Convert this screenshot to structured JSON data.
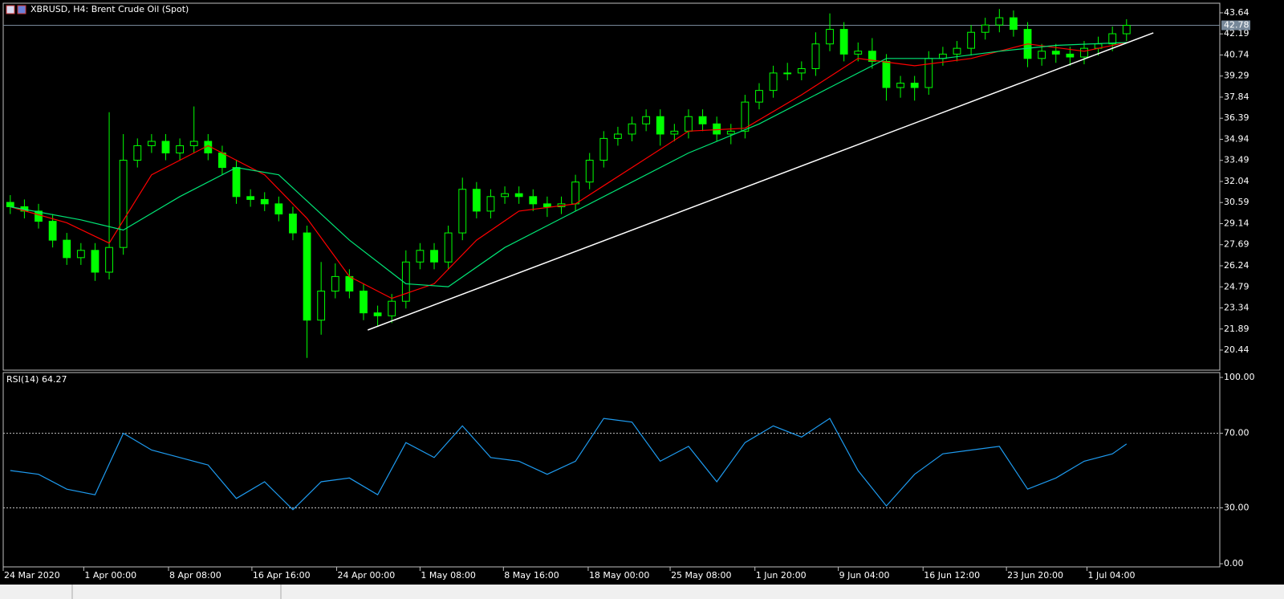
{
  "chart_data": [
    {
      "type": "candlestick",
      "title": "XBRUSD, H4:  Brent Crude Oil (Spot)",
      "color": "#00ff00",
      "open": [
        30.6,
        30.3,
        30.0,
        29.3,
        28.0,
        26.8,
        27.3,
        25.8,
        27.5,
        33.5,
        34.5,
        34.8,
        34.0,
        34.5,
        34.8,
        34.0,
        33.0,
        31.0,
        30.8,
        30.5,
        29.8,
        28.5,
        22.5,
        24.5,
        25.5,
        24.5,
        23.0,
        22.8,
        23.8,
        26.5,
        27.3,
        26.5,
        28.5,
        31.5,
        30.0,
        31.0,
        31.2,
        31.0,
        30.5,
        30.3,
        30.5,
        32.0,
        33.5,
        35.0,
        35.3,
        36.0,
        36.5,
        35.3,
        35.5,
        36.5,
        36.0,
        35.3,
        35.5,
        37.5,
        38.3,
        39.5,
        39.5,
        39.8,
        41.5,
        42.5,
        40.8,
        41.0,
        40.3,
        38.5,
        38.8,
        38.5,
        40.5,
        40.8,
        41.2,
        42.3,
        42.8,
        43.3,
        42.5,
        40.5,
        41.0,
        40.8,
        40.6,
        41.2,
        41.5,
        42.2
      ],
      "high": [
        31.1,
        30.8,
        30.5,
        29.8,
        28.5,
        27.8,
        27.8,
        36.8,
        35.3,
        35.0,
        35.3,
        35.3,
        35.0,
        37.2,
        35.3,
        34.5,
        33.5,
        31.5,
        31.3,
        31.0,
        30.3,
        29.0,
        26.5,
        26.4,
        26.0,
        25.0,
        23.5,
        24.3,
        27.3,
        27.8,
        27.8,
        29.0,
        32.3,
        32.0,
        31.5,
        31.7,
        31.7,
        31.5,
        31.0,
        31.0,
        32.5,
        34.0,
        35.5,
        35.8,
        36.5,
        37.0,
        37.0,
        36.0,
        37.0,
        37.0,
        36.5,
        36.0,
        38.0,
        38.8,
        40.0,
        40.2,
        40.3,
        42.3,
        43.6,
        43.0,
        41.6,
        41.9,
        40.8,
        39.3,
        39.3,
        41.0,
        41.3,
        41.7,
        42.8,
        43.3,
        43.9,
        43.8,
        43.0,
        41.5,
        41.5,
        41.3,
        41.7,
        42.0,
        42.7,
        43.2
      ],
      "low": [
        29.8,
        29.5,
        28.8,
        27.5,
        26.3,
        26.3,
        25.2,
        25.3,
        27.0,
        33.0,
        34.0,
        33.5,
        33.5,
        34.0,
        33.5,
        32.5,
        30.5,
        30.3,
        30.0,
        29.3,
        28.0,
        19.9,
        21.5,
        24.0,
        24.0,
        22.5,
        22.1,
        22.3,
        23.3,
        26.0,
        26.0,
        26.0,
        28.0,
        29.5,
        29.5,
        30.5,
        30.5,
        30.0,
        29.6,
        29.8,
        30.0,
        31.5,
        33.0,
        34.5,
        34.8,
        35.5,
        34.5,
        34.8,
        35.0,
        35.5,
        34.8,
        34.6,
        35.0,
        37.0,
        37.8,
        39.0,
        39.0,
        39.3,
        41.0,
        40.3,
        40.3,
        39.8,
        37.6,
        37.8,
        37.6,
        38.0,
        40.0,
        40.3,
        40.7,
        41.8,
        42.3,
        42.0,
        39.9,
        40.0,
        40.2,
        40.0,
        40.1,
        40.7,
        41.0,
        41.7
      ],
      "close": [
        30.3,
        30.0,
        29.3,
        28.0,
        26.8,
        27.3,
        25.8,
        27.5,
        33.5,
        34.5,
        34.8,
        34.0,
        34.5,
        34.8,
        34.0,
        33.0,
        31.0,
        30.8,
        30.5,
        29.8,
        28.5,
        22.5,
        24.5,
        25.5,
        24.5,
        23.0,
        22.8,
        23.8,
        26.5,
        27.3,
        26.5,
        28.5,
        31.5,
        30.0,
        31.0,
        31.2,
        31.0,
        30.5,
        30.3,
        30.5,
        32.0,
        33.5,
        35.0,
        35.3,
        36.0,
        36.5,
        35.3,
        35.5,
        36.5,
        36.0,
        35.3,
        35.5,
        37.5,
        38.3,
        39.5,
        39.5,
        39.8,
        41.5,
        42.5,
        40.8,
        41.0,
        40.3,
        38.5,
        38.8,
        38.5,
        40.5,
        40.8,
        41.2,
        42.3,
        42.8,
        43.3,
        42.5,
        40.5,
        41.0,
        40.8,
        40.6,
        41.2,
        41.5,
        42.2,
        42.78
      ],
      "series": [
        {
          "color": "#ff0000",
          "x": [
            0,
            4,
            7,
            10,
            14,
            18,
            21,
            24,
            27,
            30,
            33,
            36,
            40,
            44,
            48,
            52,
            56,
            60,
            64,
            68,
            72,
            76,
            79
          ],
          "values": [
            30.3,
            29.2,
            27.8,
            32.5,
            34.5,
            32.5,
            29.5,
            25.5,
            24.0,
            25.0,
            28.0,
            30.0,
            30.5,
            33.0,
            35.5,
            35.7,
            38.0,
            40.5,
            40.0,
            40.5,
            41.5,
            41.0,
            41.6
          ]
        },
        {
          "color": "#00e676",
          "x": [
            0,
            5,
            8,
            12,
            16,
            19,
            24,
            28,
            31,
            35,
            39,
            43,
            48,
            53,
            58,
            62,
            66,
            70,
            74,
            79
          ],
          "values": [
            30.3,
            29.4,
            28.7,
            31.0,
            33.0,
            32.5,
            28.0,
            25.0,
            24.8,
            27.5,
            29.5,
            31.5,
            34.0,
            36.0,
            38.5,
            40.5,
            40.5,
            41.0,
            41.4,
            41.6
          ]
        }
      ],
      "trendline": {
        "color": "#ffffff",
        "x": [
          25.3,
          80.9
        ],
        "values": [
          21.82,
          42.26
        ]
      },
      "current_price": 42.78,
      "xlim": [
        -0.5,
        85.6
      ],
      "ylim": [
        19.06,
        44.3
      ],
      "yticks": [
        20.44,
        21.89,
        23.34,
        24.79,
        26.24,
        27.69,
        29.14,
        30.59,
        32.04,
        33.49,
        34.94,
        36.39,
        37.84,
        39.29,
        40.74,
        42.19,
        43.64
      ]
    },
    {
      "type": "line",
      "title": "RSI(14) 64.27",
      "series": [
        {
          "color": "#1e9bf0",
          "x": [
            0,
            2,
            4,
            6,
            8,
            10,
            12,
            14,
            16,
            18,
            20,
            22,
            24,
            26,
            28,
            30,
            32,
            34,
            36,
            38,
            40,
            42,
            44,
            46,
            48,
            50,
            52,
            54,
            56,
            58,
            60,
            62,
            64,
            66,
            68,
            70,
            72,
            74,
            76,
            78,
            79
          ],
          "values": [
            50,
            48,
            40,
            37,
            70,
            61,
            57,
            53,
            35,
            44,
            29,
            44,
            46,
            37,
            65,
            57,
            74,
            57,
            55,
            48,
            55,
            78,
            76,
            55,
            63,
            44,
            65,
            74,
            68,
            78,
            50,
            31,
            48,
            59,
            61,
            63,
            40,
            46,
            55,
            59,
            64.27
          ]
        }
      ],
      "levels": [
        30,
        70
      ],
      "xlim": [
        -0.5,
        85.6
      ],
      "ylim": [
        -1.7,
        102.6
      ],
      "yticks": [
        {
          "value": 0,
          "label": "0.00"
        },
        {
          "value": 30,
          "label": "30.00"
        },
        {
          "value": 70,
          "label": "70.00"
        },
        {
          "value": 100,
          "label": "100.00"
        }
      ],
      "xticks": [
        {
          "value": -0.5,
          "label": "24 Mar 2020"
        },
        {
          "value": 5.2,
          "label": "1 Apr 00:00"
        },
        {
          "value": 11.2,
          "label": "8 Apr 08:00"
        },
        {
          "value": 17.1,
          "label": "16 Apr 16:00"
        },
        {
          "value": 23.1,
          "label": "24 Apr 00:00"
        },
        {
          "value": 29.0,
          "label": "1 May 08:00"
        },
        {
          "value": 34.9,
          "label": "8 May 16:00"
        },
        {
          "value": 40.9,
          "label": "18 May 00:00"
        },
        {
          "value": 46.7,
          "label": "25 May 08:00"
        },
        {
          "value": 52.7,
          "label": "1 Jun 20:00"
        },
        {
          "value": 58.6,
          "label": "9 Jun 04:00"
        },
        {
          "value": 64.6,
          "label": "16 Jun 12:00"
        },
        {
          "value": 70.5,
          "label": "23 Jun 20:00"
        },
        {
          "value": 76.2,
          "label": "1 Jul 04:00"
        }
      ]
    }
  ]
}
